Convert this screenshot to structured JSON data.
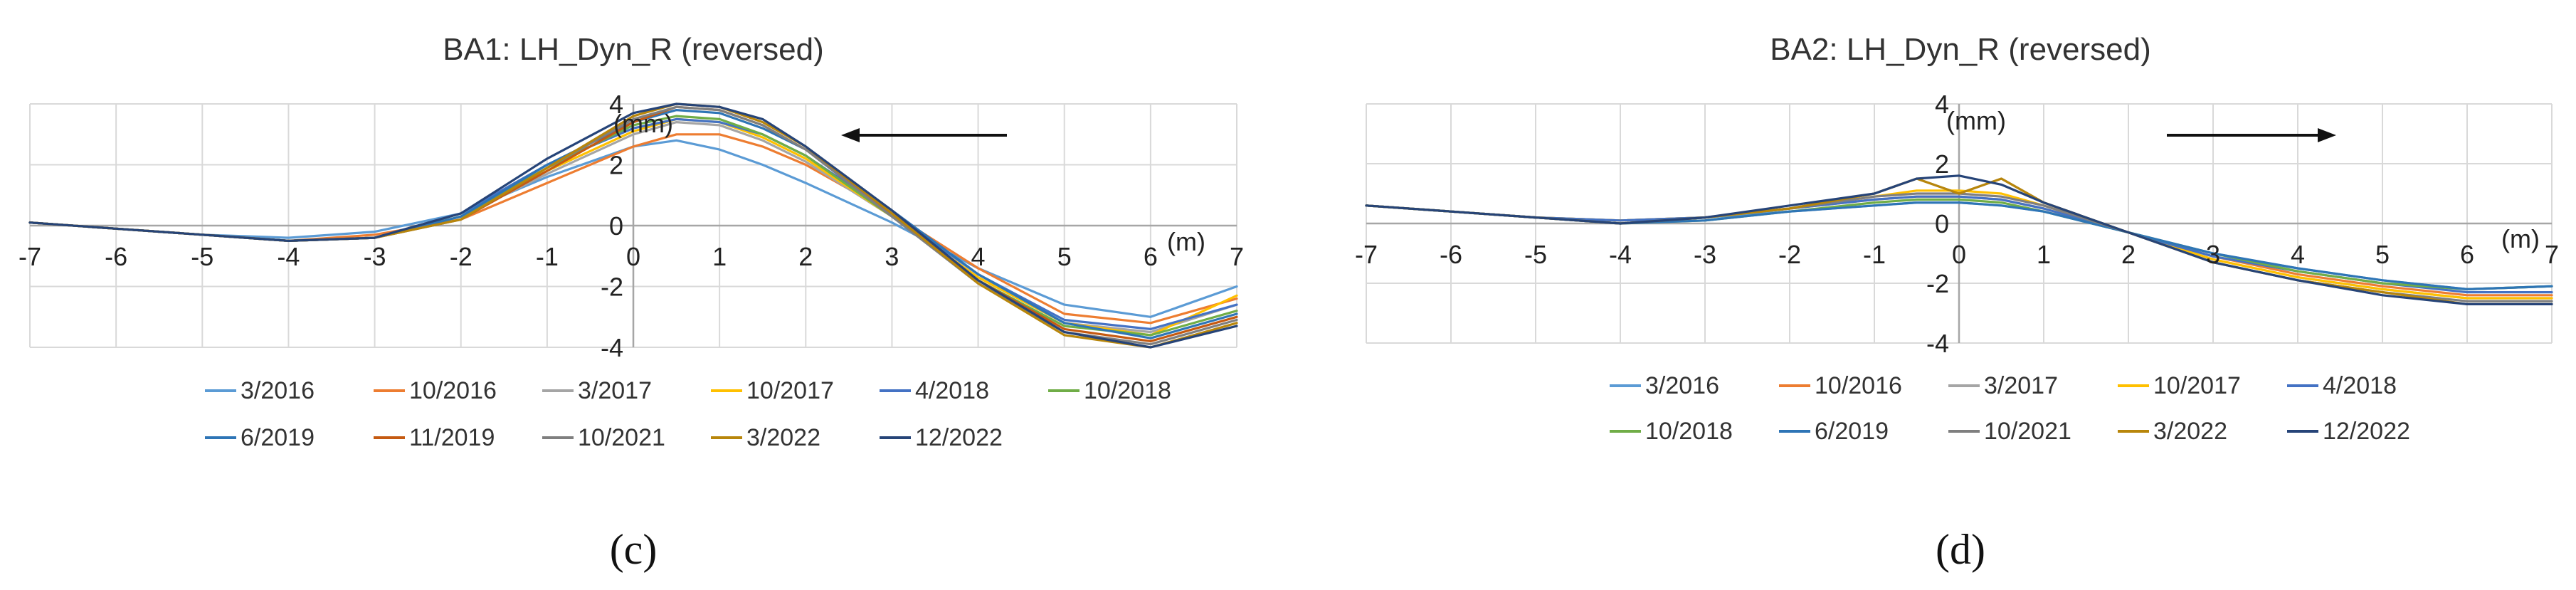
{
  "colors": {
    "s1": "#5B9BD5",
    "s2": "#ED7D31",
    "s3": "#A5A5A5",
    "s4": "#FFC000",
    "s5": "#4472C4",
    "s6": "#70AD47",
    "s7": "#2E75B6",
    "s8": "#C55A11",
    "s9": "#7F7F7F",
    "s10": "#B8860B",
    "s11": "#264478"
  },
  "chart_data": [
    {
      "id": "c",
      "type": "line",
      "title": "BA1: LH_Dyn_R (reversed)",
      "caption": "(c)",
      "xunit": "(m)",
      "yunit": "(mm)",
      "xlim": [
        -7,
        7
      ],
      "ylim": [
        -4,
        4
      ],
      "xticks": [
        -7,
        -6,
        -5,
        -4,
        -3,
        -2,
        -1,
        0,
        1,
        2,
        3,
        4,
        5,
        6,
        7
      ],
      "yticks": [
        4,
        2,
        0,
        -2,
        -4
      ],
      "grid": true,
      "arrow_direction": "left",
      "x": [
        -7,
        -6,
        -5,
        -4,
        -3,
        -2,
        -1,
        0,
        0.5,
        1,
        1.5,
        2,
        3,
        4,
        5,
        6,
        7
      ],
      "series": [
        {
          "name": "3/2016",
          "values": [
            0.1,
            -0.1,
            -0.3,
            -0.4,
            -0.2,
            0.4,
            1.6,
            2.6,
            2.8,
            2.5,
            2.0,
            1.4,
            0.1,
            -1.4,
            -2.6,
            -3.0,
            -2.0
          ]
        },
        {
          "name": "10/2016",
          "values": [
            0.1,
            -0.1,
            -0.3,
            -0.5,
            -0.3,
            0.2,
            1.4,
            2.6,
            3.0,
            3.0,
            2.6,
            2.0,
            0.4,
            -1.4,
            -2.9,
            -3.2,
            -2.4
          ]
        },
        {
          "name": "3/2017",
          "values": [
            0.1,
            -0.1,
            -0.3,
            -0.5,
            -0.4,
            0.3,
            1.7,
            3.0,
            3.4,
            3.3,
            2.8,
            2.1,
            0.3,
            -1.7,
            -3.2,
            -3.5,
            -2.6
          ]
        },
        {
          "name": "10/2017",
          "values": [
            0.1,
            -0.1,
            -0.3,
            -0.5,
            -0.4,
            0.3,
            1.8,
            3.1,
            3.5,
            3.4,
            2.9,
            2.2,
            0.3,
            -1.7,
            -3.2,
            -3.6,
            -2.3
          ]
        },
        {
          "name": "4/2018",
          "values": [
            0.1,
            -0.1,
            -0.3,
            -0.5,
            -0.4,
            0.4,
            2.0,
            3.2,
            3.5,
            3.4,
            3.0,
            2.3,
            0.4,
            -1.6,
            -3.1,
            -3.4,
            -2.6
          ]
        },
        {
          "name": "10/2018",
          "values": [
            0.1,
            -0.1,
            -0.3,
            -0.5,
            -0.4,
            0.3,
            1.9,
            3.3,
            3.6,
            3.5,
            3.0,
            2.3,
            0.3,
            -1.8,
            -3.3,
            -3.6,
            -2.8
          ]
        },
        {
          "name": "6/2019",
          "values": [
            0.1,
            -0.1,
            -0.3,
            -0.5,
            -0.4,
            0.3,
            2.0,
            3.4,
            3.8,
            3.7,
            3.2,
            2.5,
            0.5,
            -1.6,
            -3.2,
            -3.7,
            -2.9
          ]
        },
        {
          "name": "11/2019",
          "values": [
            0.1,
            -0.1,
            -0.3,
            -0.5,
            -0.4,
            0.2,
            1.8,
            3.4,
            3.9,
            3.8,
            3.3,
            2.5,
            0.4,
            -1.8,
            -3.4,
            -3.8,
            -3.0
          ]
        },
        {
          "name": "10/2021",
          "values": [
            0.1,
            -0.1,
            -0.3,
            -0.5,
            -0.4,
            0.2,
            1.9,
            3.5,
            3.9,
            3.8,
            3.3,
            2.5,
            0.3,
            -1.9,
            -3.5,
            -3.9,
            -3.1
          ]
        },
        {
          "name": "3/2022",
          "values": [
            0.1,
            -0.1,
            -0.3,
            -0.5,
            -0.4,
            0.2,
            1.9,
            3.6,
            4.0,
            3.9,
            3.4,
            2.6,
            0.4,
            -1.9,
            -3.6,
            -4.0,
            -3.2
          ]
        },
        {
          "name": "12/2022",
          "values": [
            0.1,
            -0.1,
            -0.3,
            -0.5,
            -0.4,
            0.4,
            2.2,
            3.7,
            4.0,
            3.9,
            3.5,
            2.6,
            0.5,
            -1.8,
            -3.5,
            -4.0,
            -3.3
          ]
        }
      ]
    },
    {
      "id": "d",
      "type": "line",
      "title": "BA2: LH_Dyn_R (reversed)",
      "caption": "(d)",
      "xunit": "(m)",
      "yunit": "(mm)",
      "xlim": [
        -7,
        7
      ],
      "ylim": [
        -4,
        4
      ],
      "xticks": [
        -7,
        -6,
        -5,
        -4,
        -3,
        -2,
        -1,
        0,
        1,
        2,
        3,
        4,
        5,
        6,
        7
      ],
      "yticks": [
        4,
        2,
        0,
        -2,
        -4
      ],
      "grid": true,
      "arrow_direction": "right",
      "x": [
        -7,
        -6,
        -5,
        -4,
        -3,
        -2,
        -1,
        -0.5,
        0,
        0.5,
        1,
        2,
        3,
        4,
        5,
        6,
        7
      ],
      "series": [
        {
          "name": "3/2016",
          "values": [
            0.6,
            0.4,
            0.2,
            0.1,
            0.2,
            0.4,
            0.6,
            0.7,
            0.7,
            0.6,
            0.4,
            -0.3,
            -1.0,
            -1.5,
            -1.9,
            -2.2,
            -2.1
          ]
        },
        {
          "name": "10/2016",
          "values": [
            0.6,
            0.4,
            0.2,
            0.1,
            0.2,
            0.5,
            0.8,
            0.9,
            0.9,
            0.8,
            0.5,
            -0.3,
            -1.1,
            -1.7,
            -2.1,
            -2.4,
            -2.4
          ]
        },
        {
          "name": "3/2017",
          "values": [
            0.6,
            0.4,
            0.2,
            0.0,
            0.2,
            0.5,
            1.0,
            1.5,
            1.0,
            1.5,
            0.7,
            -0.3,
            -1.2,
            -1.8,
            -2.2,
            -2.5,
            -2.5
          ]
        },
        {
          "name": "10/2017",
          "values": [
            0.6,
            0.4,
            0.2,
            0.1,
            0.2,
            0.5,
            0.9,
            1.1,
            1.1,
            1.0,
            0.6,
            -0.3,
            -1.2,
            -1.8,
            -2.2,
            -2.5,
            -2.5
          ]
        },
        {
          "name": "4/2018",
          "values": [
            0.6,
            0.4,
            0.2,
            0.1,
            0.2,
            0.5,
            0.8,
            0.9,
            0.9,
            0.8,
            0.5,
            -0.3,
            -1.1,
            -1.6,
            -2.0,
            -2.3,
            -2.3
          ]
        },
        {
          "name": "10/2018",
          "values": [
            0.6,
            0.4,
            0.2,
            0.0,
            0.1,
            0.4,
            0.7,
            0.8,
            0.8,
            0.7,
            0.4,
            -0.3,
            -1.0,
            -1.6,
            -2.0,
            -2.2,
            -2.1
          ]
        },
        {
          "name": "6/2019",
          "values": [
            0.6,
            0.4,
            0.2,
            0.0,
            0.1,
            0.4,
            0.6,
            0.7,
            0.7,
            0.6,
            0.4,
            -0.3,
            -1.0,
            -1.5,
            -1.9,
            -2.2,
            -2.1
          ]
        },
        {
          "name": "10/2021",
          "values": [
            0.6,
            0.4,
            0.2,
            0.0,
            0.2,
            0.5,
            0.9,
            1.0,
            1.0,
            0.9,
            0.6,
            -0.3,
            -1.3,
            -1.9,
            -2.3,
            -2.6,
            -2.6
          ]
        },
        {
          "name": "3/2022",
          "values": [
            0.6,
            0.4,
            0.2,
            0.0,
            0.2,
            0.5,
            1.0,
            1.5,
            1.0,
            1.5,
            0.7,
            -0.3,
            -1.3,
            -1.9,
            -2.3,
            -2.7,
            -2.7
          ]
        },
        {
          "name": "12/2022",
          "values": [
            0.6,
            0.4,
            0.2,
            0.0,
            0.2,
            0.6,
            1.0,
            1.5,
            1.6,
            1.3,
            0.7,
            -0.3,
            -1.3,
            -1.9,
            -2.4,
            -2.7,
            -2.7
          ]
        }
      ]
    }
  ]
}
